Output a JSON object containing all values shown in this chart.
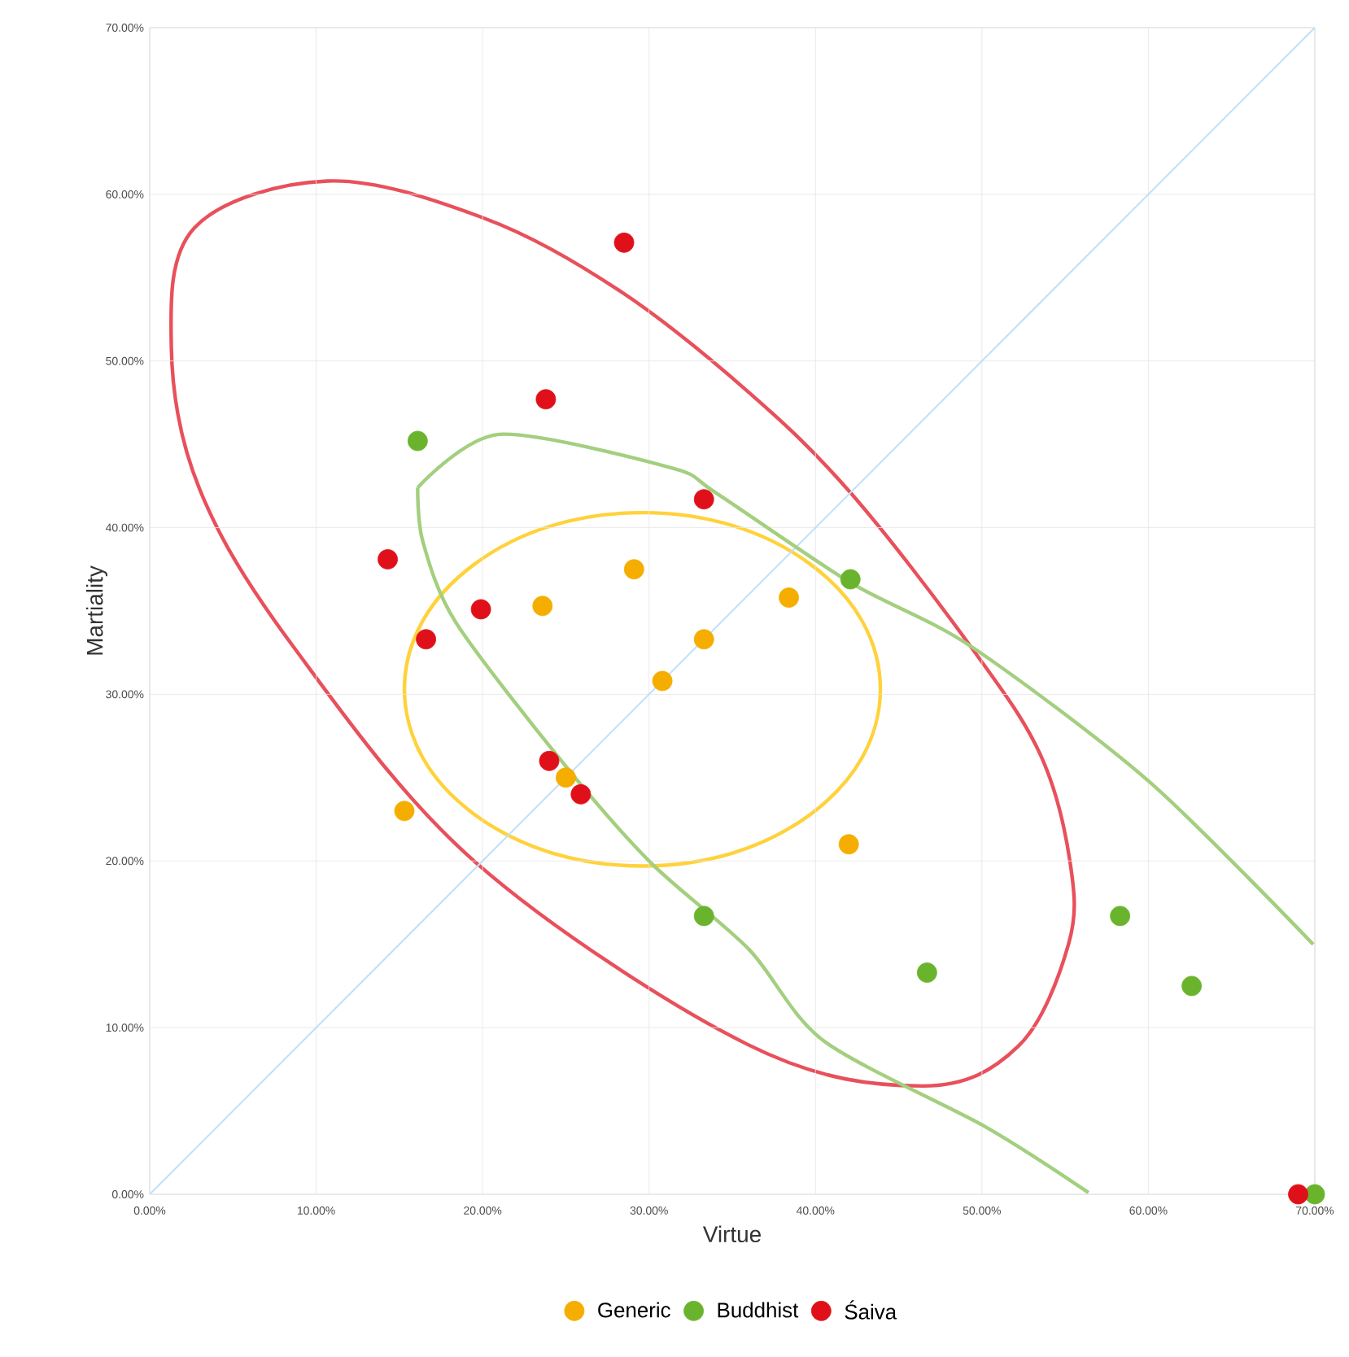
{
  "chart_data": {
    "type": "scatter",
    "xlabel": "Virtue",
    "ylabel": "Martiality",
    "xlim": [
      0,
      70
    ],
    "ylim": [
      0,
      70
    ],
    "xticks": [
      {
        "value": 0,
        "label": "0.00%"
      },
      {
        "value": 10,
        "label": "10.00%"
      },
      {
        "value": 20,
        "label": "20.00%"
      },
      {
        "value": 30,
        "label": "30.00%"
      },
      {
        "value": 40,
        "label": "40.00%"
      },
      {
        "value": 50,
        "label": "50.00%"
      },
      {
        "value": 60,
        "label": "60.00%"
      },
      {
        "value": 70,
        "label": "70.00%"
      }
    ],
    "yticks": [
      {
        "value": 0,
        "label": "0.00%"
      },
      {
        "value": 10,
        "label": "10.00%"
      },
      {
        "value": 20,
        "label": "20.00%"
      },
      {
        "value": 30,
        "label": "30.00%"
      },
      {
        "value": 40,
        "label": "40.00%"
      },
      {
        "value": 50,
        "label": "50.00%"
      },
      {
        "value": 60,
        "label": "60.00%"
      },
      {
        "value": 70,
        "label": "70.00%"
      }
    ],
    "grid": true,
    "legend": "bottom",
    "marker": "circle",
    "series": [
      {
        "type": "line",
        "marker": "none",
        "color": "#bfe0f7",
        "x": [
          0,
          70
        ],
        "values": [
          0,
          70
        ]
      },
      {
        "type": "line",
        "marker": "none",
        "color": "#a3cf7f",
        "x": [
          16.1,
          21.0,
          31.3,
          34.0,
          42.1,
          49.3,
          60.0,
          69.9
        ],
        "values": [
          42.4,
          45.6,
          43.6,
          42.1,
          36.7,
          32.9,
          24.8,
          15.0
        ]
      },
      {
        "type": "line",
        "marker": "none",
        "color": "#a3cf7f",
        "x": [
          16.1,
          16.4,
          18.4,
          24.9,
          30.1,
          36.0,
          40.5,
          50.3,
          56.4
        ],
        "values": [
          42.4,
          39.2,
          34.3,
          25.8,
          19.9,
          14.7,
          9.2,
          4.0,
          0.1
        ]
      },
      {
        "name": "Generic",
        "color": "#f5ad00",
        "x": [
          15.3,
          23.6,
          29.1,
          33.3,
          30.8,
          38.4,
          25.0,
          42.0
        ],
        "values": [
          23.0,
          35.3,
          37.5,
          33.3,
          30.8,
          35.8,
          25.0,
          21.0
        ]
      },
      {
        "name": "Buddhist",
        "color": "#6ab42d",
        "x": [
          16.1,
          42.1,
          33.3,
          46.7,
          58.3,
          62.6,
          70.0
        ],
        "values": [
          45.2,
          36.9,
          16.7,
          13.3,
          16.7,
          12.5,
          0
        ]
      },
      {
        "name": "Śaiva",
        "color": "#e0101a",
        "x": [
          28.5,
          23.8,
          33.3,
          14.3,
          16.6,
          19.9,
          24.0,
          25.9,
          69.0
        ],
        "values": [
          57.1,
          47.7,
          41.7,
          38.1,
          33.3,
          35.1,
          26.0,
          24.0,
          0
        ]
      }
    ]
  }
}
